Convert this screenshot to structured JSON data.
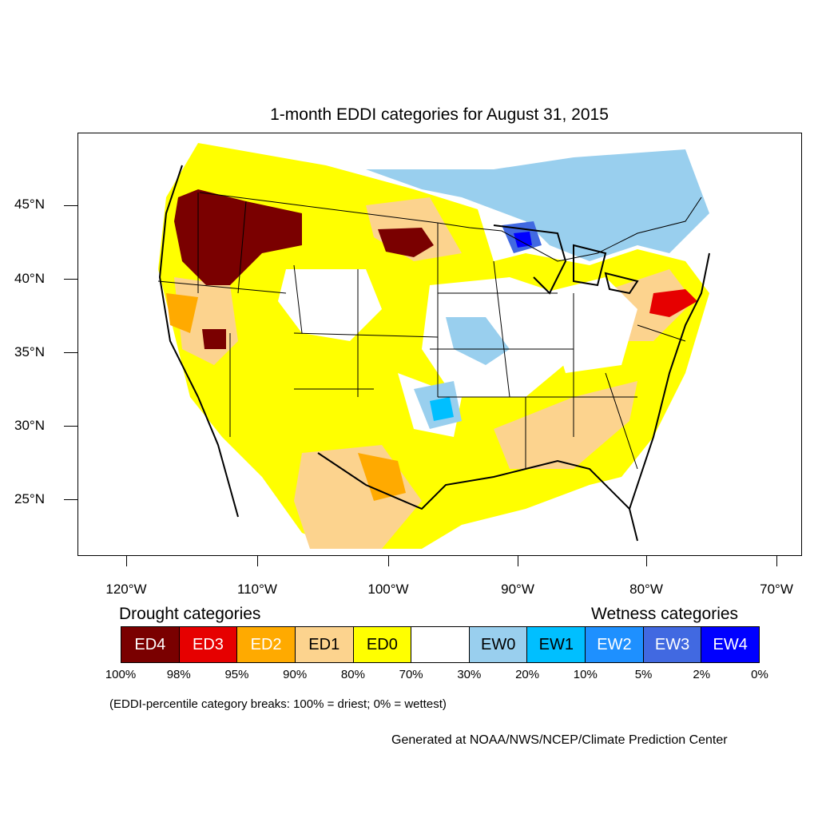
{
  "title": "1-month EDDI categories for August 31, 2015",
  "axes": {
    "lat_labels": [
      "45°N",
      "40°N",
      "35°N",
      "30°N",
      "25°N"
    ],
    "lon_labels": [
      "120°W",
      "110°W",
      "100°W",
      "90°W",
      "80°W",
      "70°W"
    ]
  },
  "legend": {
    "drought_heading": "Drought categories",
    "wetness_heading": "Wetness categories",
    "categories": [
      {
        "label": "ED4",
        "color": "#7a0000",
        "text_color": "#ffffff"
      },
      {
        "label": "ED3",
        "color": "#e60000",
        "text_color": "#ffffff"
      },
      {
        "label": "ED2",
        "color": "#ffaa00",
        "text_color": "#ffffff"
      },
      {
        "label": "ED1",
        "color": "#fcd38e",
        "text_color": "#000000"
      },
      {
        "label": "ED0",
        "color": "#ffff00",
        "text_color": "#000000"
      },
      {
        "label": "",
        "color": "#ffffff",
        "text_color": "#000000"
      },
      {
        "label": "EW0",
        "color": "#99cfee",
        "text_color": "#000000"
      },
      {
        "label": "EW1",
        "color": "#00bfff",
        "text_color": "#000000"
      },
      {
        "label": "EW2",
        "color": "#1e90ff",
        "text_color": "#ffffff"
      },
      {
        "label": "EW3",
        "color": "#4169e1",
        "text_color": "#ffffff"
      },
      {
        "label": "EW4",
        "color": "#0000ff",
        "text_color": "#ffffff"
      }
    ],
    "breaks": [
      "100%",
      "98%",
      "95%",
      "90%",
      "80%",
      "70%",
      "30%",
      "20%",
      "10%",
      "5%",
      "2%",
      "0%"
    ]
  },
  "note": "(EDDI-percentile category breaks: 100% = driest; 0% = wettest)",
  "credit": "Generated at NOAA/NWS/NCEP/Climate Prediction Center"
}
